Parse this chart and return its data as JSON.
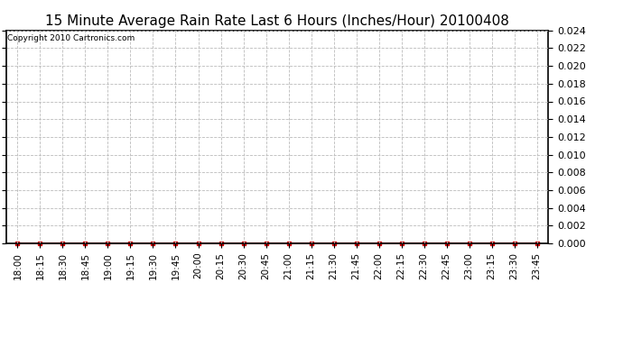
{
  "title": "15 Minute Average Rain Rate Last 6 Hours (Inches/Hour) 20100408",
  "copyright_text": "Copyright 2010 Cartronics.com",
  "x_labels": [
    "18:00",
    "18:15",
    "18:30",
    "18:45",
    "19:00",
    "19:15",
    "19:30",
    "19:45",
    "20:00",
    "20:15",
    "20:30",
    "20:45",
    "21:00",
    "21:15",
    "21:30",
    "21:45",
    "22:00",
    "22:15",
    "22:30",
    "22:45",
    "23:00",
    "23:15",
    "23:30",
    "23:45"
  ],
  "y_values": [
    0.0,
    0.0,
    0.0,
    0.0,
    0.0,
    0.0,
    0.0,
    0.0,
    0.0,
    0.0,
    0.0,
    0.0,
    0.0,
    0.0,
    0.0,
    0.0,
    0.0,
    0.0,
    0.0,
    0.0,
    0.0,
    0.0,
    0.0,
    0.0
  ],
  "ylim": [
    0.0,
    0.024
  ],
  "y_ticks": [
    0.0,
    0.002,
    0.004,
    0.006,
    0.008,
    0.01,
    0.012,
    0.014,
    0.016,
    0.018,
    0.02,
    0.022,
    0.024
  ],
  "line_color": "#cc0000",
  "marker_color": "#cc0000",
  "bg_color": "#ffffff",
  "grid_color": "#bbbbbb",
  "title_fontsize": 11,
  "copyright_fontsize": 6.5,
  "tick_fontsize": 7.5,
  "ytick_fontsize": 8
}
